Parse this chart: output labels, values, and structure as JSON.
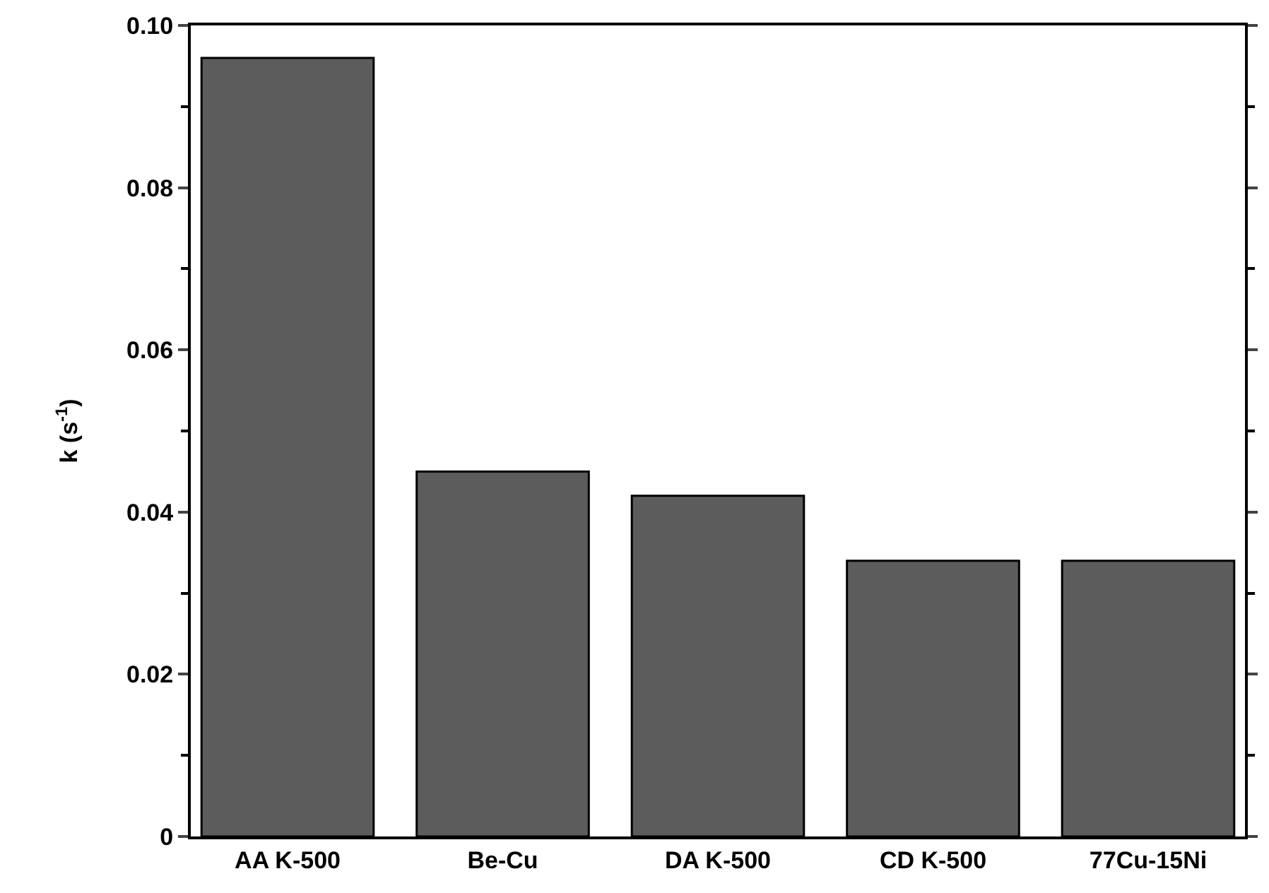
{
  "chart_data": {
    "type": "bar",
    "ylabel": "k (s$^{-1}$)",
    "categories": [
      "AA K-500",
      "Be-Cu",
      "DA K-500",
      "CD K-500",
      "77Cu-15Ni"
    ],
    "values": [
      0.096,
      0.045,
      0.042,
      0.034,
      0.034
    ],
    "color": "#5c5c5c",
    "ylim": [
      0,
      0.1
    ],
    "yticks": [
      0,
      0.02,
      0.04,
      0.06,
      0.08,
      {
        "value": 0.1,
        "label": "0.10"
      }
    ]
  }
}
